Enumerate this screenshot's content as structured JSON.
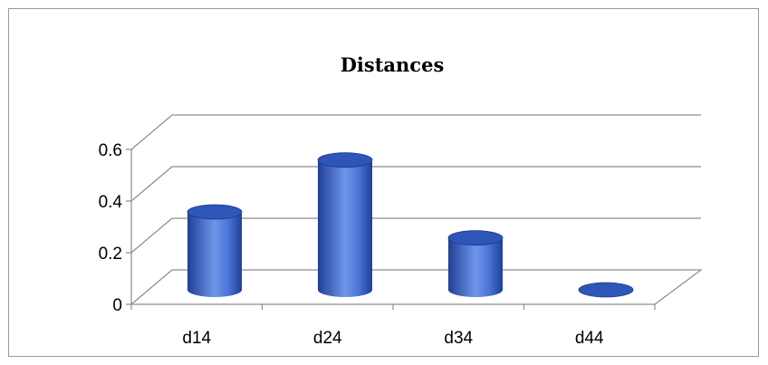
{
  "chart_data": {
    "type": "bar",
    "style": "3d-cylinder",
    "title": "Distances",
    "categories": [
      "d14",
      "d24",
      "d34",
      "d44"
    ],
    "values": [
      0.3,
      0.5,
      0.2,
      0.0
    ],
    "ylim": [
      0,
      0.6
    ],
    "yticks": [
      0,
      0.2,
      0.4,
      0.6
    ],
    "ytick_labels": [
      "0",
      "0.2",
      "0.4",
      "0.6"
    ],
    "grid": true,
    "legend": "none",
    "colors": {
      "bar_dark": "#1f3f95",
      "bar_mid": "#3a63c7",
      "bar_light": "#6f96ea",
      "bar_top": "#2e55b8",
      "grid": "#8c8c8c",
      "axis": "#8c8c8c"
    }
  }
}
